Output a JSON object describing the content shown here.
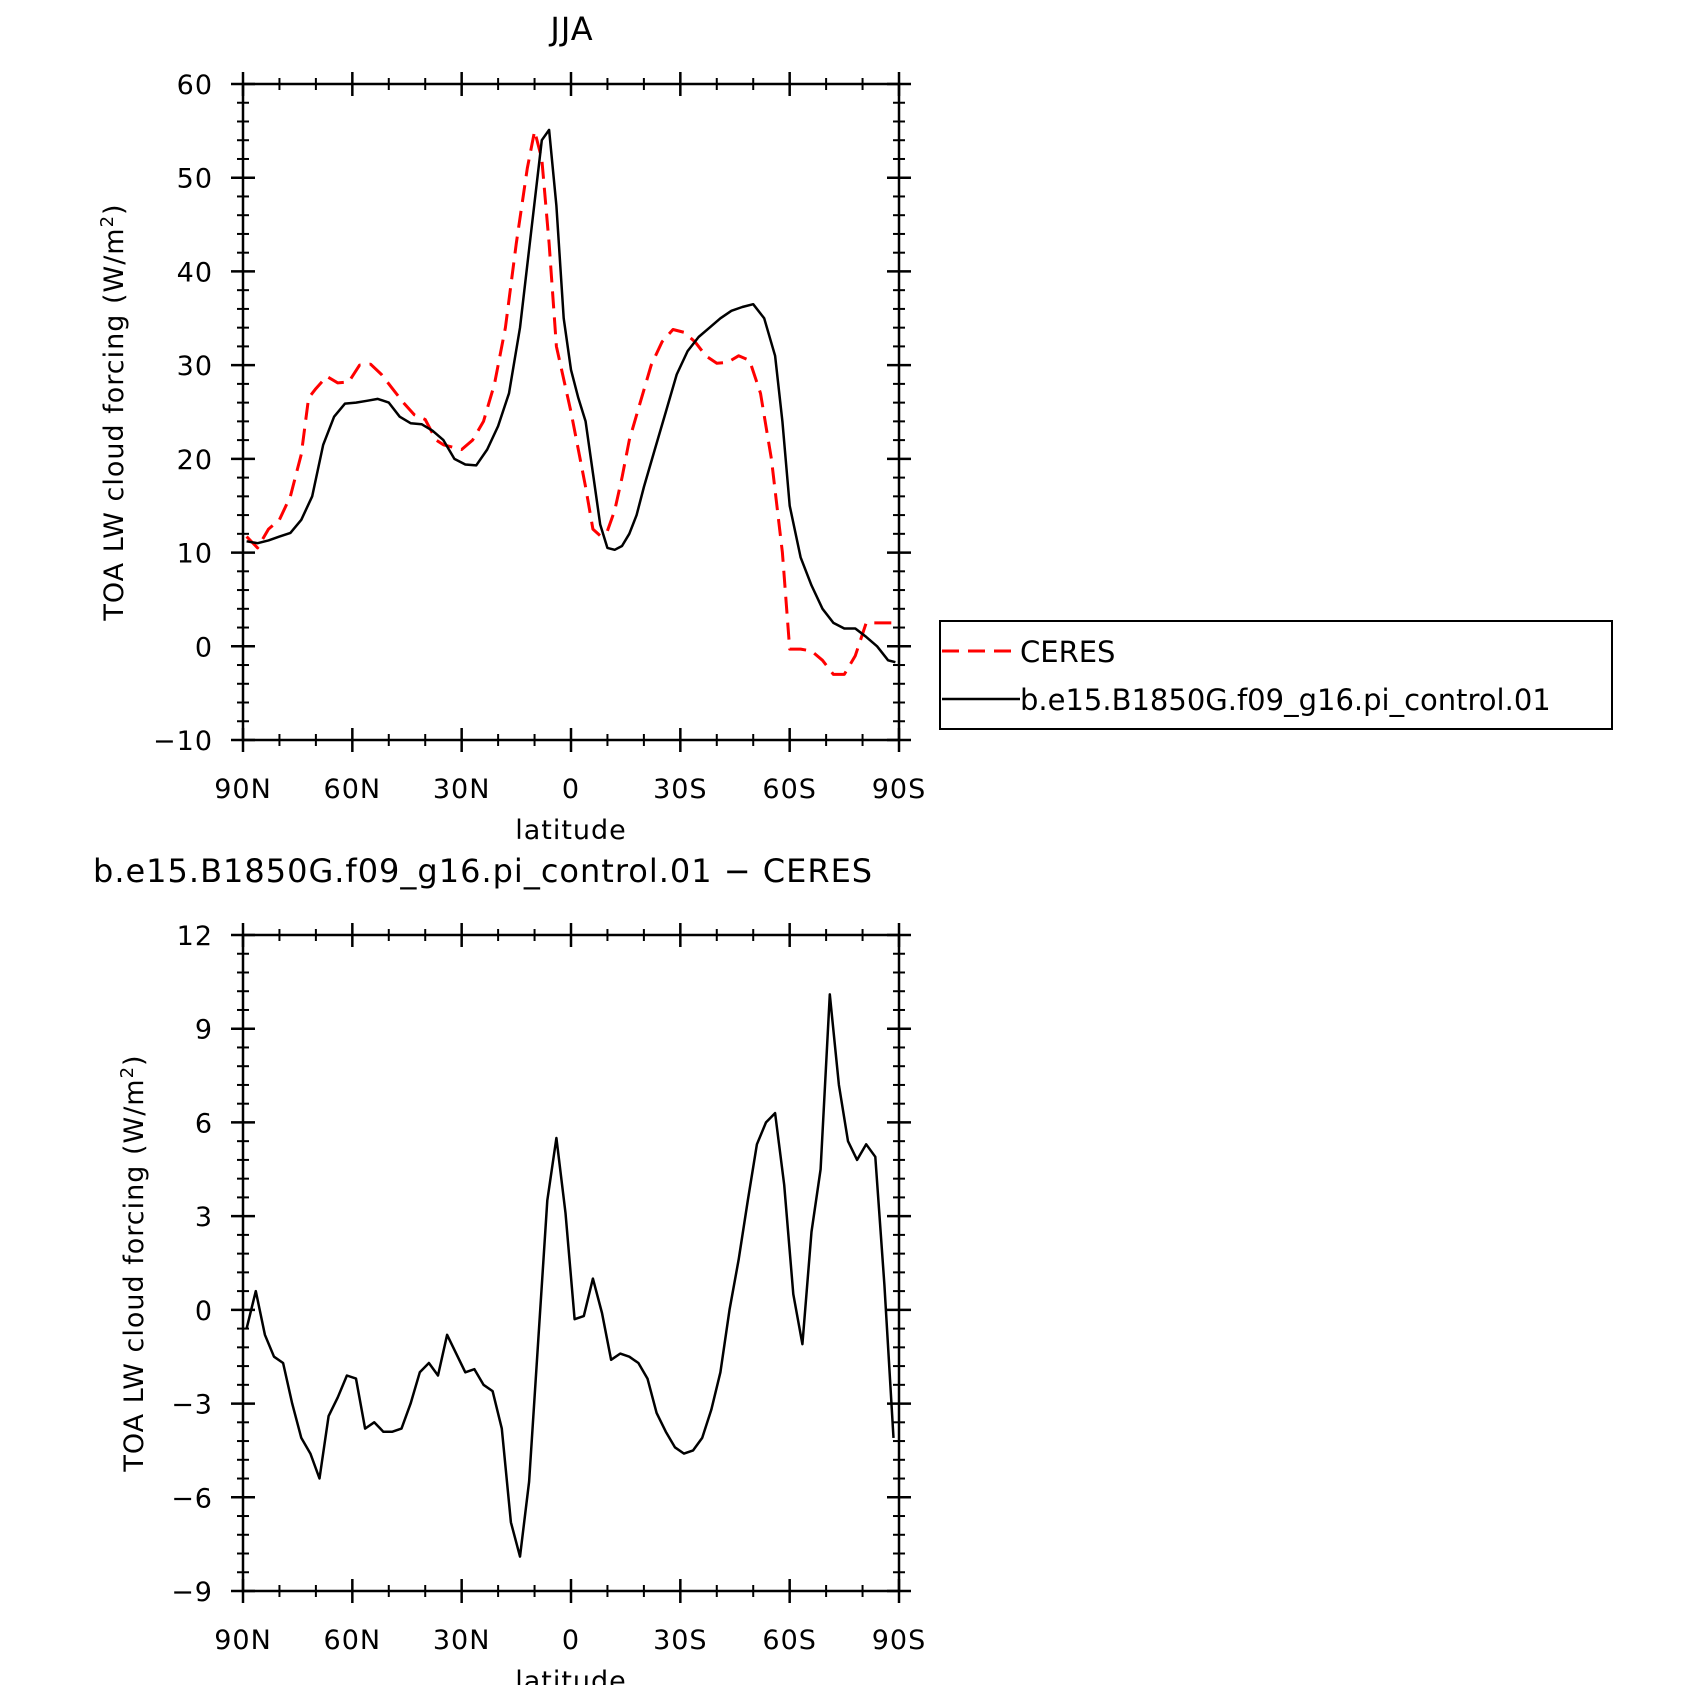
{
  "chart_data": [
    {
      "type": "line",
      "title": "JJA",
      "xlabel": "latitude",
      "ylabel": "TOA LW cloud forcing (W/m²)",
      "ylabel_main": "TOA LW cloud forcing (W/m",
      "ylabel_sup": "2",
      "ylabel_end": ")",
      "xlim": [
        90,
        -90
      ],
      "ylim": [
        -10,
        60
      ],
      "x_ticks": [
        90,
        60,
        30,
        0,
        -30,
        -60,
        -90
      ],
      "x_tick_labels": [
        "90N",
        "60N",
        "30N",
        "0",
        "30S",
        "60S",
        "90S"
      ],
      "y_ticks": [
        -10,
        0,
        10,
        20,
        30,
        40,
        50,
        60
      ],
      "y_tick_labels": [
        "−10",
        "0",
        "10",
        "20",
        "30",
        "40",
        "50",
        "60"
      ],
      "grid": false,
      "legend_position": "right",
      "series": [
        {
          "name": "CERES",
          "color": "#ff0000",
          "style": "dashed",
          "x": [
            89,
            86,
            83,
            80,
            77,
            74,
            72,
            70,
            67,
            64,
            61,
            58,
            55,
            52,
            49,
            46,
            43,
            40,
            37,
            35,
            33,
            30,
            27,
            24,
            21,
            18,
            15,
            12,
            10,
            8,
            6,
            4,
            2,
            0,
            -2,
            -4,
            -6,
            -8,
            -10,
            -12,
            -14,
            -16,
            -19,
            -22,
            -25,
            -28,
            -31,
            -34,
            -37,
            -40,
            -43,
            -46,
            -49,
            -52,
            -55,
            -58,
            -60,
            -63,
            -66,
            -69,
            -72,
            -75,
            -78,
            -81,
            -84,
            -87,
            -89
          ],
          "y": [
            11.7,
            10.5,
            12.5,
            13.5,
            16.0,
            20.5,
            26.5,
            27.5,
            28.8,
            28.1,
            28.2,
            30.0,
            30.1,
            29.0,
            27.5,
            26.0,
            24.7,
            24.2,
            22.0,
            21.5,
            21.3,
            21.0,
            22.0,
            24.0,
            28.0,
            34.0,
            43.0,
            51.0,
            55.0,
            52.0,
            43.0,
            32.0,
            28.5,
            25.0,
            21.0,
            17.0,
            12.5,
            11.8,
            12.3,
            14.5,
            18.0,
            22.0,
            26.0,
            30.0,
            32.5,
            33.8,
            33.5,
            32.5,
            31.0,
            30.2,
            30.3,
            31.0,
            30.5,
            27.0,
            20.0,
            10.0,
            -0.3,
            -0.3,
            -0.5,
            -1.5,
            -3.0,
            -3.0,
            -1.0,
            2.5,
            2.5,
            2.5,
            2.5
          ]
        },
        {
          "name": "b.e15.B1850G.f09_g16.pi_control.01",
          "color": "#000000",
          "style": "solid",
          "x": [
            89,
            86,
            83,
            80,
            77,
            74,
            71,
            68,
            65,
            62,
            59,
            56,
            53,
            50,
            47,
            44,
            41,
            38,
            35,
            32,
            29,
            26,
            23,
            20,
            17,
            14,
            11,
            8,
            6,
            4,
            2,
            0,
            -2,
            -4,
            -6,
            -8,
            -10,
            -12,
            -14,
            -16,
            -18,
            -20,
            -23,
            -26,
            -29,
            -32,
            -35,
            -38,
            -41,
            -44,
            -47,
            -50,
            -53,
            -56,
            -58,
            -60,
            -63,
            -66,
            -69,
            -72,
            -75,
            -78,
            -81,
            -84,
            -87,
            -89
          ],
          "y": [
            11.2,
            11.0,
            11.3,
            11.7,
            12.1,
            13.5,
            16.0,
            21.5,
            24.5,
            25.9,
            26.0,
            26.2,
            26.4,
            26.0,
            24.5,
            23.8,
            23.7,
            23.0,
            22.0,
            20.0,
            19.4,
            19.3,
            21.0,
            23.5,
            27.0,
            34.0,
            44.0,
            54.0,
            55.1,
            47.0,
            35.0,
            29.5,
            26.5,
            24.0,
            18.5,
            13.0,
            10.5,
            10.3,
            10.7,
            12.0,
            14.0,
            17.0,
            21.0,
            25.0,
            29.0,
            31.5,
            33.0,
            34.0,
            35.0,
            35.8,
            36.2,
            36.5,
            35.0,
            31.0,
            24.0,
            15.0,
            9.5,
            6.5,
            4.0,
            2.5,
            1.9,
            1.9,
            1.0,
            0.0,
            -1.5,
            -1.7
          ]
        }
      ]
    },
    {
      "type": "line",
      "title": "b.e15.B1850G.f09_g16.pi_control.01 − CERES",
      "xlabel": "latitude",
      "ylabel": "TOA LW cloud forcing (W/m²)",
      "ylabel_main": "TOA LW cloud forcing (W/m",
      "ylabel_sup": "2",
      "ylabel_end": ")",
      "xlim": [
        90,
        -90
      ],
      "ylim": [
        -9,
        12
      ],
      "x_ticks": [
        90,
        60,
        30,
        0,
        -30,
        -60,
        -90
      ],
      "x_tick_labels": [
        "90N",
        "60N",
        "30N",
        "0",
        "30S",
        "60S",
        "90S"
      ],
      "y_ticks": [
        -9,
        -6,
        -3,
        0,
        3,
        6,
        9,
        12
      ],
      "y_tick_labels": [
        "−9",
        "−6",
        "−3",
        "0",
        "3",
        "6",
        "9",
        "12"
      ],
      "grid": false,
      "series": [
        {
          "color": "#000000",
          "style": "solid",
          "x": [
            89,
            86.5,
            84,
            81.5,
            79,
            76.5,
            74,
            71.5,
            69,
            66.5,
            64,
            61.5,
            59,
            56.5,
            54,
            51.5,
            49,
            46.5,
            44,
            41.5,
            39,
            36.5,
            34,
            31.5,
            29,
            26.5,
            24,
            21.5,
            19,
            16.5,
            14,
            11.5,
            9,
            6.5,
            4,
            1.5,
            -1,
            -3.5,
            -6,
            -8.5,
            -11,
            -13.5,
            -16,
            -18.5,
            -21,
            -23.5,
            -26,
            -28.5,
            -31,
            -33.5,
            -36,
            -38.5,
            -41,
            -43.5,
            -46,
            -48.5,
            -51,
            -53.5,
            -56,
            -58.5,
            -61,
            -63.5,
            -66,
            -68.5,
            -71,
            -73.5,
            -76,
            -78.5,
            -81,
            -83.5,
            -86,
            -88.5
          ],
          "y": [
            -0.6,
            0.6,
            -0.8,
            -1.5,
            -1.7,
            -3.0,
            -4.1,
            -4.6,
            -5.4,
            -3.4,
            -2.8,
            -2.1,
            -2.2,
            -3.8,
            -3.6,
            -3.9,
            -3.9,
            -3.8,
            -3.0,
            -2.0,
            -1.7,
            -2.1,
            -0.8,
            -1.4,
            -2.0,
            -1.9,
            -2.4,
            -2.6,
            -3.8,
            -6.8,
            -7.9,
            -5.5,
            -1.0,
            3.5,
            5.5,
            3.1,
            -0.3,
            -0.2,
            1.0,
            -0.1,
            -1.6,
            -1.4,
            -1.5,
            -1.7,
            -2.2,
            -3.3,
            -3.9,
            -4.4,
            -4.6,
            -4.5,
            -4.1,
            -3.2,
            -2.0,
            0.0,
            1.6,
            3.5,
            5.3,
            6.0,
            6.3,
            4.0,
            0.5,
            -1.1,
            2.5,
            4.5,
            10.1,
            7.2,
            5.4,
            4.8,
            5.3,
            4.9,
            0.8,
            -4.1
          ]
        }
      ]
    }
  ]
}
